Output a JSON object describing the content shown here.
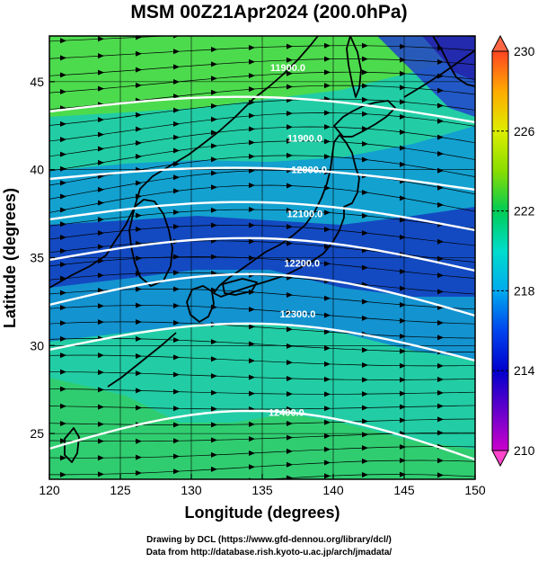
{
  "title": "MSM 00Z21Apr2024 (200.0hPa)",
  "axes": {
    "xlabel": "Longitude (degrees)",
    "ylabel": "Latitude  (degrees)",
    "xlim": [
      120,
      150
    ],
    "ylim": [
      22.4,
      47.6
    ],
    "xticks": [
      120,
      125,
      130,
      135,
      140,
      145,
      150
    ],
    "yticks": [
      25,
      30,
      35,
      40,
      45
    ]
  },
  "colorbar": {
    "min": 210,
    "max": 230,
    "ticks": [
      210,
      214,
      218,
      222,
      226,
      230
    ],
    "palette": [
      "#cc00cc",
      "#6600cc",
      "#0000cc",
      "#0044ee",
      "#00aaee",
      "#00ddcc",
      "#00cc55",
      "#88dd00",
      "#ddee00",
      "#ffaa00",
      "#ff4422"
    ]
  },
  "contours": [
    {
      "label": "11900.0",
      "label_lon": 136.8,
      "label_lat": 45.6
    },
    {
      "label": "11900.0",
      "label_lon": 138.0,
      "label_lat": 41.6
    },
    {
      "label": "12000.0",
      "label_lon": 138.3,
      "label_lat": 39.8
    },
    {
      "label": "12100.0",
      "label_lon": 138.0,
      "label_lat": 37.3
    },
    {
      "label": "12200.0",
      "label_lon": 137.8,
      "label_lat": 34.5
    },
    {
      "label": "12300.0",
      "label_lon": 137.5,
      "label_lat": 31.6
    },
    {
      "label": "12400.0",
      "label_lon": 136.7,
      "label_lat": 26.0
    }
  ],
  "credits": {
    "line1": "Drawing by DCL (https://www.gfd-dennou.org/library/dcl/)",
    "line2": "Data from http://database.rish.kyoto-u.ac.jp/arch/jmadata/"
  }
}
